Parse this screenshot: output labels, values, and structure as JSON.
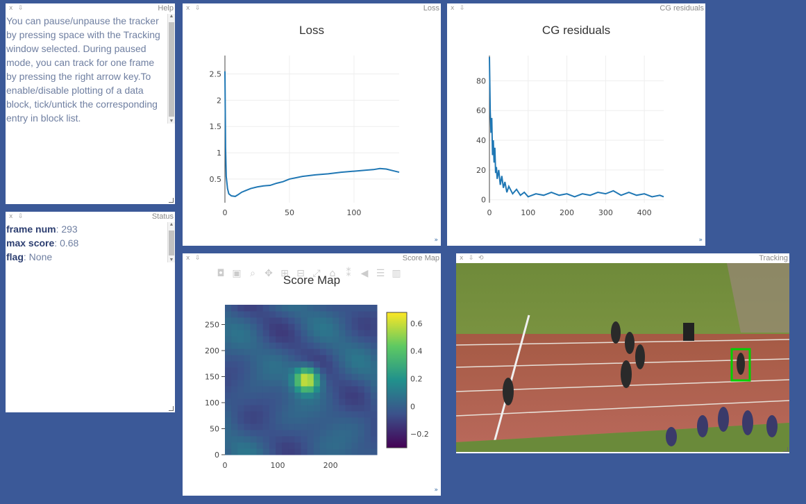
{
  "colors": {
    "background": "#3b5998",
    "line": "#1f77b4",
    "box": "#00d000"
  },
  "pane_controls": {
    "close": "x",
    "download": "⇩",
    "reset": "⟲"
  },
  "help": {
    "title": "Help",
    "text": "You can pause/unpause the tracker by pressing space with the Tracking window selected. During paused mode, you can track for one frame by pressing the right arrow key.To enable/disable plotting of a data block, tick/untick the corresponding entry in block list."
  },
  "status": {
    "title": "Status",
    "items": [
      {
        "key": "frame num",
        "value": "293"
      },
      {
        "key": "max score",
        "value": "0.68"
      },
      {
        "key": "flag",
        "value": "None"
      }
    ]
  },
  "loss_pane": {
    "title": "Loss"
  },
  "cg_pane": {
    "title": "CG residuals"
  },
  "score_pane": {
    "title": "Score Map"
  },
  "tracking_pane": {
    "title": "Tracking"
  },
  "chart_data": [
    {
      "type": "line",
      "title": "Loss",
      "xlim": [
        0,
        135
      ],
      "ylim": [
        0.05,
        2.85
      ],
      "x_ticks": [
        "0",
        "50",
        "100"
      ],
      "y_ticks": [
        "0.5",
        "1",
        "1.5",
        "2",
        "2.5"
      ],
      "series": [
        {
          "x": [
            0,
            0.5,
            1,
            2,
            3,
            5,
            8,
            10,
            13,
            16,
            20,
            25,
            30,
            35,
            40,
            45,
            50,
            60,
            70,
            80,
            90,
            100,
            110,
            115,
            120,
            125,
            130,
            135
          ],
          "y": [
            2.55,
            1.1,
            0.55,
            0.32,
            0.22,
            0.18,
            0.17,
            0.2,
            0.25,
            0.28,
            0.32,
            0.35,
            0.37,
            0.38,
            0.42,
            0.45,
            0.5,
            0.55,
            0.58,
            0.6,
            0.63,
            0.65,
            0.67,
            0.68,
            0.7,
            0.69,
            0.66,
            0.63
          ]
        }
      ]
    },
    {
      "type": "line",
      "title": "CG residuals",
      "xlim": [
        0,
        450
      ],
      "ylim": [
        -2,
        97
      ],
      "x_ticks": [
        "0",
        "100",
        "200",
        "300",
        "400"
      ],
      "y_ticks": [
        "0",
        "20",
        "40",
        "60",
        "80"
      ],
      "series": [
        {
          "x": [
            0,
            2,
            4,
            6,
            8,
            10,
            12,
            14,
            16,
            18,
            20,
            24,
            28,
            32,
            36,
            40,
            45,
            50,
            60,
            70,
            80,
            90,
            100,
            120,
            140,
            160,
            180,
            200,
            220,
            240,
            260,
            280,
            300,
            320,
            340,
            360,
            380,
            400,
            420,
            440,
            450
          ],
          "y": [
            96,
            60,
            45,
            55,
            30,
            40,
            25,
            35,
            18,
            22,
            14,
            20,
            10,
            16,
            8,
            12,
            5,
            9,
            4,
            7,
            3,
            5,
            2,
            4,
            3,
            5,
            3,
            4,
            2,
            4,
            3,
            5,
            4,
            6,
            3,
            5,
            3,
            4,
            2,
            3,
            2
          ]
        }
      ]
    },
    {
      "type": "heatmap",
      "title": "Score Map",
      "xlim": [
        0,
        288
      ],
      "ylim": [
        0,
        288
      ],
      "x_ticks": [
        "0",
        "100",
        "200"
      ],
      "y_ticks": [
        "0",
        "50",
        "100",
        "150",
        "200",
        "250"
      ],
      "colorbar_ticks": [
        "0.6",
        "0.4",
        "0.2",
        "0",
        "−0.2"
      ],
      "colorscale": [
        "#440154",
        "#3b528b",
        "#21918c",
        "#5ec962",
        "#fde725"
      ],
      "zlim": [
        -0.3,
        0.68
      ],
      "peak": {
        "x": 155,
        "y": 145,
        "value": 0.68
      }
    }
  ]
}
